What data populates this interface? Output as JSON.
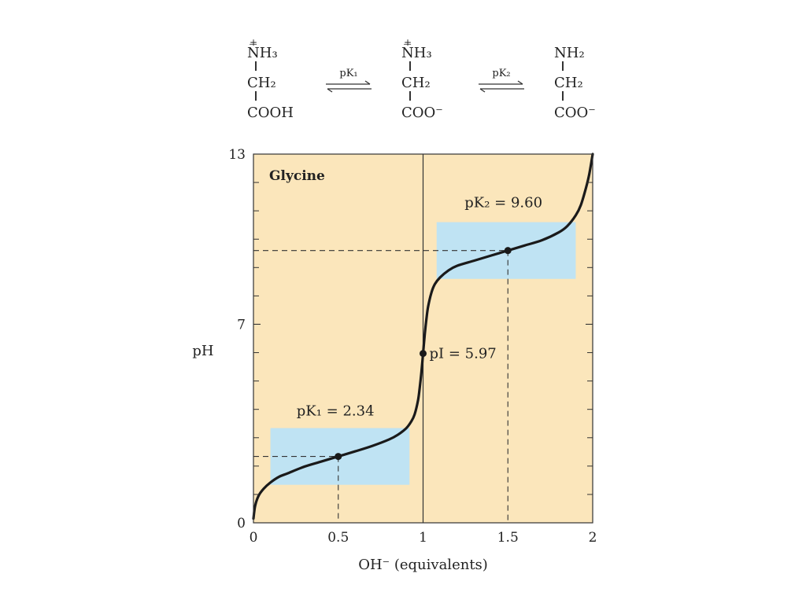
{
  "reaction": {
    "species": [
      {
        "lines": [
          "NH3",
          "CH2",
          "COOH"
        ],
        "display": [
          "N̅H₃",
          "CH₂",
          "COOH"
        ],
        "charge_top": "+"
      },
      {
        "lines": [
          "NH3",
          "CH2",
          "COO-"
        ],
        "display": [
          "N̅H₃",
          "CH₂",
          "COO⁻"
        ],
        "charge_top": "+"
      },
      {
        "lines": [
          "NH2",
          "CH2",
          "COO-"
        ],
        "display": [
          "NH₂",
          "CH₂",
          "COO⁻"
        ],
        "charge_top": ""
      }
    ],
    "equilibria": [
      "pK₁",
      "pK₂"
    ]
  },
  "chart_data": {
    "type": "line",
    "title": "Glycine",
    "xlabel": "OH⁻ (equivalents)",
    "ylabel": "pH",
    "xlim": [
      0,
      2
    ],
    "ylim": [
      0,
      13
    ],
    "x_ticks": [
      "0",
      "0.5",
      "1",
      "1.5",
      "2"
    ],
    "y_tick_labels": [
      {
        "value": 0,
        "label": "0"
      },
      {
        "value": 7,
        "label": "7"
      },
      {
        "value": 13,
        "label": "13"
      }
    ],
    "minor_y_ticks": [
      1,
      2,
      3,
      4,
      5,
      6,
      8,
      9,
      10,
      11,
      12
    ],
    "grid": false,
    "background_color": "#fbe6bb",
    "curve_color": "#1a1a1a",
    "buffer_color": "#bfe3f3",
    "series": [
      {
        "x": [
          0.0,
          0.01,
          0.03,
          0.06,
          0.1,
          0.15,
          0.2,
          0.3,
          0.4,
          0.5,
          0.6,
          0.7,
          0.8,
          0.85,
          0.9,
          0.93,
          0.95,
          0.97,
          0.98,
          0.99,
          1.0,
          1.01,
          1.02,
          1.03,
          1.05,
          1.07,
          1.1,
          1.15,
          1.2,
          1.3,
          1.4,
          1.5,
          1.6,
          1.7,
          1.8,
          1.85,
          1.9,
          1.93,
          1.96,
          1.98,
          2.0
        ],
        "y": [
          0.15,
          0.6,
          0.95,
          1.2,
          1.42,
          1.62,
          1.74,
          1.98,
          2.16,
          2.34,
          2.52,
          2.71,
          2.94,
          3.1,
          3.33,
          3.57,
          3.82,
          4.31,
          4.75,
          5.3,
          5.97,
          6.65,
          7.2,
          7.63,
          8.13,
          8.42,
          8.65,
          8.9,
          9.06,
          9.24,
          9.42,
          9.6,
          9.78,
          9.96,
          10.24,
          10.46,
          10.84,
          11.2,
          11.8,
          12.3,
          13.0
        ]
      }
    ],
    "annotations": [
      {
        "id": "pk1",
        "label": "pK₁ = 2.34",
        "x": 0.5,
        "y": 2.34
      },
      {
        "id": "pi",
        "label": "pI = 5.97",
        "x": 1.0,
        "y": 5.97
      },
      {
        "id": "pk2",
        "label": "pK₂ = 9.60",
        "x": 1.5,
        "y": 9.6
      }
    ],
    "buffer_regions": [
      {
        "x": [
          0.1,
          0.92
        ],
        "y": [
          1.34,
          3.34
        ]
      },
      {
        "x": [
          1.08,
          1.9
        ],
        "y": [
          8.6,
          10.6
        ]
      }
    ],
    "vertical_line_at_x": 1.0
  }
}
